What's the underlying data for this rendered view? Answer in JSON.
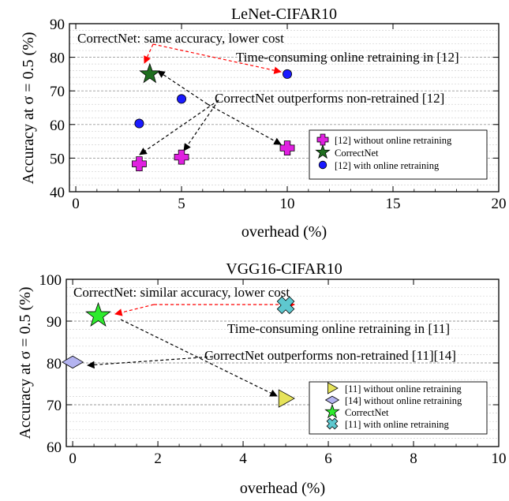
{
  "chart_data": [
    {
      "type": "scatter",
      "title": "LeNet-CIFAR10",
      "xlabel": "overhead (%)",
      "ylabel": "Accuracy at σ = 0.5 (%)",
      "xlim": [
        -0.3,
        20
      ],
      "ylim": [
        40,
        90
      ],
      "xticks": [
        "0",
        "5",
        "10",
        "15",
        "20"
      ],
      "yticks": [
        "40",
        "50",
        "60",
        "70",
        "80",
        "90"
      ],
      "grid": "horizontal-dashed",
      "legend_position": "bottom-right",
      "series": [
        {
          "name": "[12] without online retraining",
          "marker": "plus",
          "color": "#e020e0",
          "points": [
            [
              3.0,
              48.3
            ],
            [
              5.0,
              50.3
            ],
            [
              10.0,
              53.0
            ]
          ]
        },
        {
          "name": "CorrectNet",
          "marker": "star",
          "color": "#1f6e1f",
          "points": [
            [
              3.5,
              75.0
            ]
          ]
        },
        {
          "name": "[12] with online retraining",
          "marker": "circle",
          "color": "#1a1aff",
          "points": [
            [
              3.0,
              60.3
            ],
            [
              5.0,
              67.6
            ],
            [
              10.0,
              75.0
            ]
          ]
        }
      ],
      "annotations": [
        {
          "text": "CorrectNet: same accuracy,  lower cost"
        },
        {
          "text": "Time-consuming online retraining in [12]"
        },
        {
          "text": "CorrectNet outperforms non-retrained [12]"
        }
      ]
    },
    {
      "type": "scatter",
      "title": "VGG16-CIFAR10",
      "xlabel": "overhead (%)",
      "ylabel": "Accuracy at σ = 0.5 (%)",
      "xlim": [
        -0.15,
        10
      ],
      "ylim": [
        60,
        100
      ],
      "xticks": [
        "0",
        "2",
        "4",
        "6",
        "8",
        "10"
      ],
      "yticks": [
        "60",
        "70",
        "80",
        "90",
        "100"
      ],
      "grid": "horizontal-dashed",
      "legend_position": "bottom-right",
      "series": [
        {
          "name": "[11] without online retraining",
          "marker": "triangle-right",
          "color": "#e6e35a",
          "points": [
            [
              5.0,
              71.5
            ]
          ]
        },
        {
          "name": "[14] without online retraining",
          "marker": "diamond",
          "color": "#b3b3f0",
          "points": [
            [
              0.0,
              80.2
            ]
          ]
        },
        {
          "name": "CorrectNet",
          "marker": "star",
          "color": "#2eeb2e",
          "points": [
            [
              0.6,
              91.3
            ]
          ]
        },
        {
          "name": "[11] with online retraining",
          "marker": "x",
          "color": "#5ec8cf",
          "points": [
            [
              5.0,
              93.8
            ]
          ]
        }
      ],
      "annotations": [
        {
          "text": "CorrectNet: similar accuracy,  lower cost"
        },
        {
          "text": "Time-consuming online retraining in [11]"
        },
        {
          "text": "CorrectNet outperforms non-retrained [11][14]"
        }
      ]
    }
  ]
}
